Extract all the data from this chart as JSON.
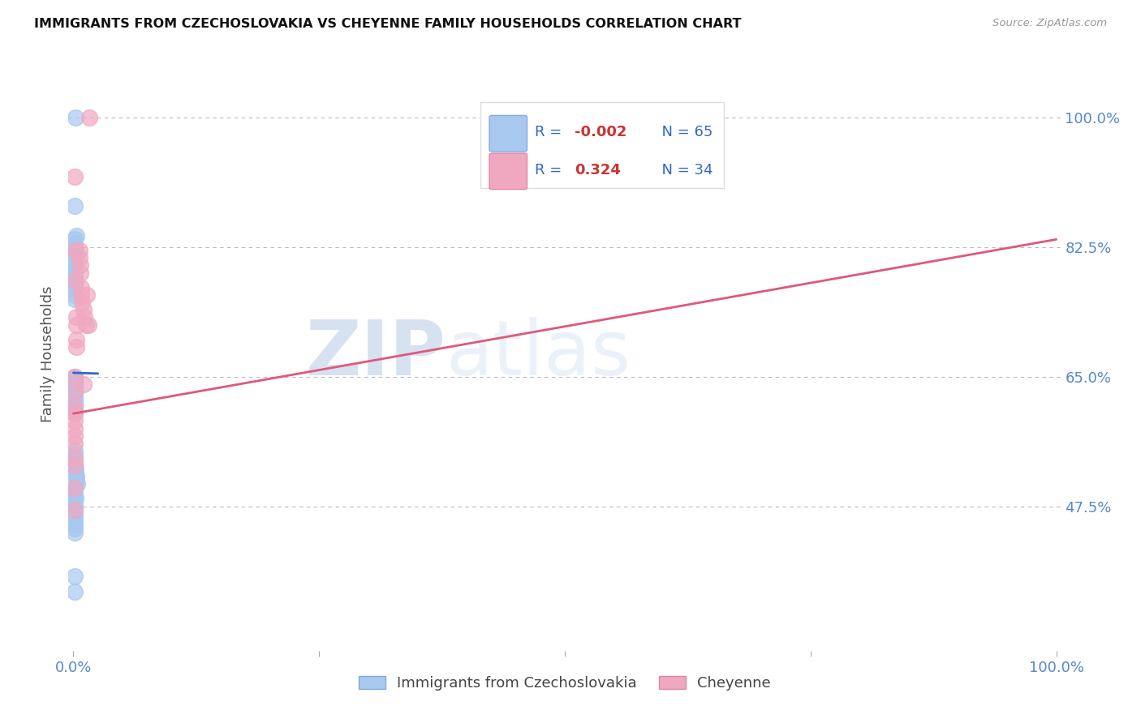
{
  "title": "IMMIGRANTS FROM CZECHOSLOVAKIA VS CHEYENNE FAMILY HOUSEHOLDS CORRELATION CHART",
  "source": "Source: ZipAtlas.com",
  "ylabel": "Family Households",
  "legend_blue_label": "Immigrants from Czechoslovakia",
  "legend_pink_label": "Cheyenne",
  "blue_color": "#a8c8f0",
  "pink_color": "#f0a8c0",
  "blue_line_color": "#3366cc",
  "pink_line_color": "#e05878",
  "blue_x": [
    0.002,
    0.001,
    0.003,
    0.001,
    0.001,
    0.001,
    0.002,
    0.002,
    0.001,
    0.001,
    0.001,
    0.001,
    0.001,
    0.001,
    0.001,
    0.001,
    0.001,
    0.001,
    0.001,
    0.001,
    0.001,
    0.001,
    0.001,
    0.001,
    0.001,
    0.001,
    0.001,
    0.001,
    0.001,
    0.001,
    0.001,
    0.001,
    0.001,
    0.001,
    0.001,
    0.001,
    0.001,
    0.001,
    0.001,
    0.001,
    0.001,
    0.001,
    0.001,
    0.001,
    0.001,
    0.002,
    0.002,
    0.003,
    0.003,
    0.004,
    0.001,
    0.001,
    0.001,
    0.002,
    0.001,
    0.001,
    0.001,
    0.001,
    0.001,
    0.001,
    0.001,
    0.001,
    0.001,
    0.001,
    0.001
  ],
  "blue_y": [
    1.0,
    0.88,
    0.84,
    0.835,
    0.83,
    0.825,
    0.82,
    0.815,
    0.81,
    0.805,
    0.8,
    0.795,
    0.79,
    0.785,
    0.78,
    0.775,
    0.77,
    0.765,
    0.76,
    0.755,
    0.65,
    0.645,
    0.64,
    0.635,
    0.63,
    0.625,
    0.62,
    0.615,
    0.61,
    0.605,
    0.65,
    0.645,
    0.64,
    0.635,
    0.63,
    0.625,
    0.62,
    0.615,
    0.61,
    0.605,
    0.55,
    0.545,
    0.54,
    0.535,
    0.53,
    0.525,
    0.52,
    0.515,
    0.51,
    0.505,
    0.5,
    0.495,
    0.49,
    0.485,
    0.48,
    0.475,
    0.47,
    0.465,
    0.46,
    0.455,
    0.45,
    0.445,
    0.44,
    0.38,
    0.36
  ],
  "pink_x": [
    0.001,
    0.002,
    0.002,
    0.003,
    0.003,
    0.003,
    0.003,
    0.001,
    0.001,
    0.001,
    0.001,
    0.001,
    0.001,
    0.001,
    0.001,
    0.001,
    0.001,
    0.001,
    0.001,
    0.001,
    0.006,
    0.006,
    0.007,
    0.007,
    0.008,
    0.008,
    0.009,
    0.01,
    0.01,
    0.011,
    0.013,
    0.014,
    0.015,
    0.016
  ],
  "pink_y": [
    0.92,
    0.82,
    0.78,
    0.73,
    0.7,
    0.72,
    0.69,
    0.65,
    0.63,
    0.61,
    0.6,
    0.6,
    0.59,
    0.58,
    0.57,
    0.56,
    0.54,
    0.53,
    0.5,
    0.47,
    0.82,
    0.81,
    0.8,
    0.79,
    0.77,
    0.76,
    0.75,
    0.74,
    0.64,
    0.73,
    0.72,
    0.76,
    0.72,
    1.0
  ],
  "x_min": 0.0,
  "x_max": 1.0,
  "y_min": 0.28,
  "y_max": 1.08,
  "y_ticks": [
    0.475,
    0.65,
    0.825,
    1.0
  ],
  "y_tick_labels": [
    "47.5%",
    "65.0%",
    "82.5%",
    "100.0%"
  ],
  "blue_R": "-0.002",
  "blue_N": "65",
  "pink_R": "0.324",
  "pink_N": "34"
}
